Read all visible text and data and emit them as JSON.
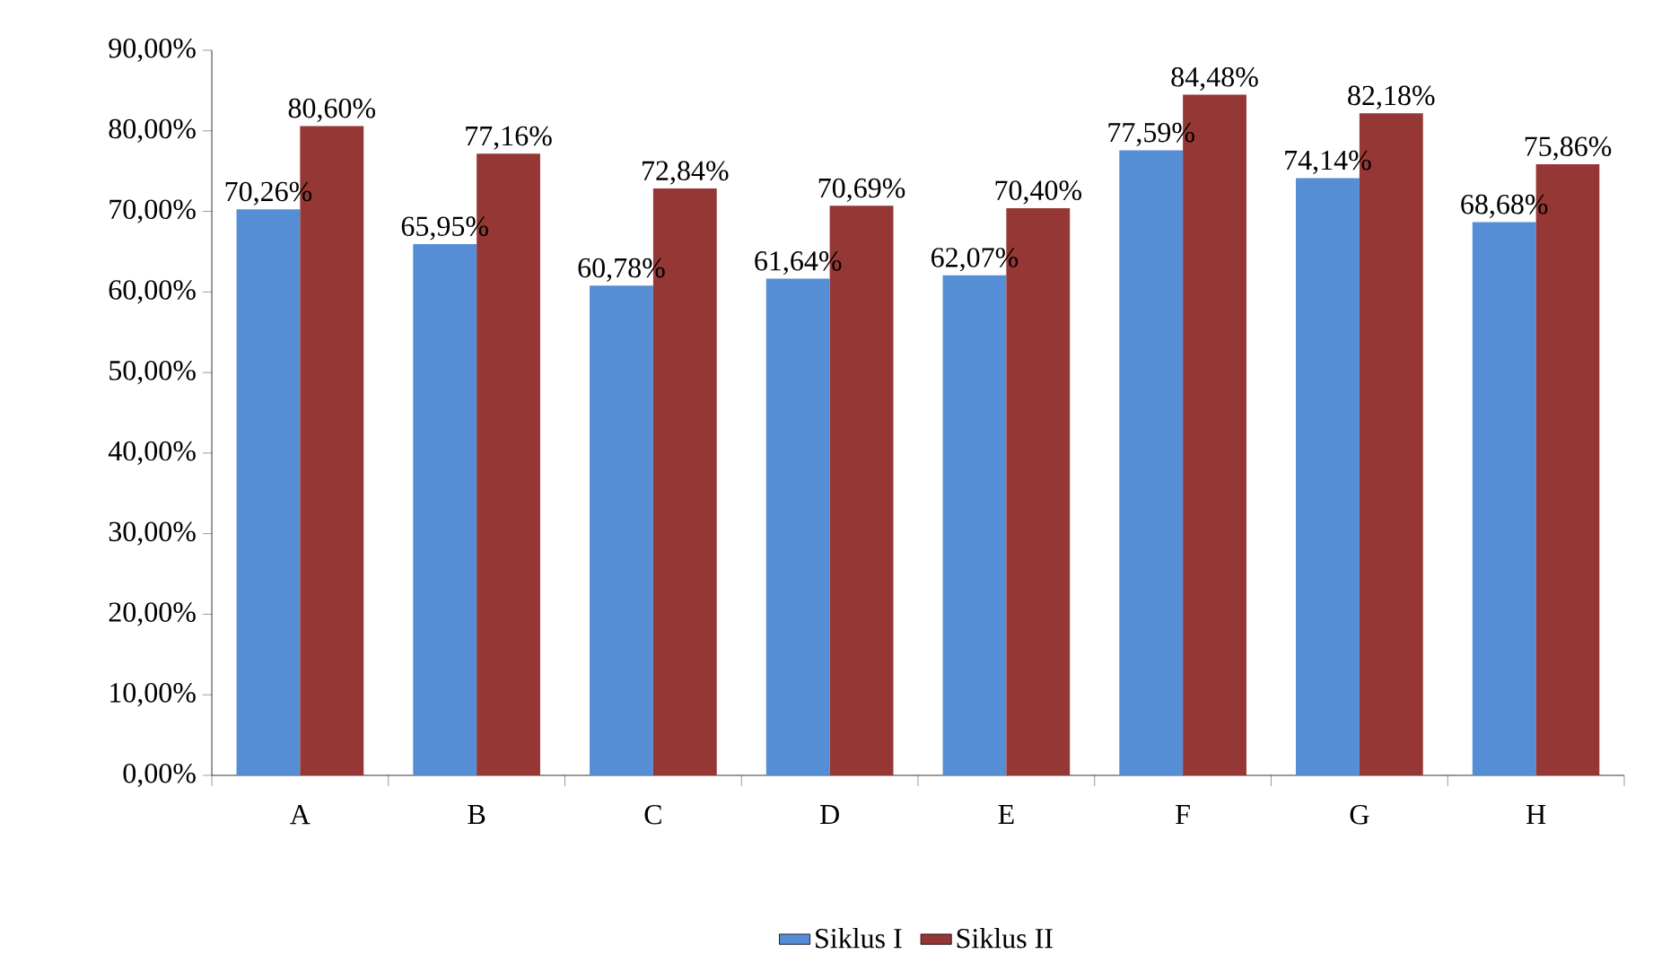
{
  "chart_data": {
    "type": "bar",
    "categories": [
      "A",
      "B",
      "C",
      "D",
      "E",
      "F",
      "G",
      "H"
    ],
    "series": [
      {
        "name": "Siklus I",
        "color": "#558ed5",
        "values": [
          70.26,
          65.95,
          60.78,
          61.64,
          62.07,
          77.59,
          74.14,
          68.68
        ],
        "value_labels": [
          "70,26%",
          "65,95%",
          "60,78%",
          "61,64%",
          "62,07%",
          "77,59%",
          "74,14%",
          "68,68%"
        ]
      },
      {
        "name": "Siklus II",
        "color": "#953735",
        "values": [
          80.6,
          77.16,
          72.84,
          70.69,
          70.4,
          84.48,
          82.18,
          75.86
        ],
        "value_labels": [
          "80,60%",
          "77,16%",
          "72,84%",
          "70,69%",
          "70,40%",
          "84,48%",
          "82,18%",
          "75,86%"
        ]
      }
    ],
    "ylim": [
      0,
      90
    ],
    "yticks": [
      {
        "value": 0,
        "label": "0,00%"
      },
      {
        "value": 10,
        "label": "10,00%"
      },
      {
        "value": 20,
        "label": "20,00%"
      },
      {
        "value": 30,
        "label": "30,00%"
      },
      {
        "value": 40,
        "label": "40,00%"
      },
      {
        "value": 50,
        "label": "50,00%"
      },
      {
        "value": 60,
        "label": "60,00%"
      },
      {
        "value": 70,
        "label": "70,00%"
      },
      {
        "value": 80,
        "label": "80,00%"
      },
      {
        "value": 90,
        "label": "90,00%"
      }
    ],
    "grid": false,
    "legend": "bottom"
  }
}
